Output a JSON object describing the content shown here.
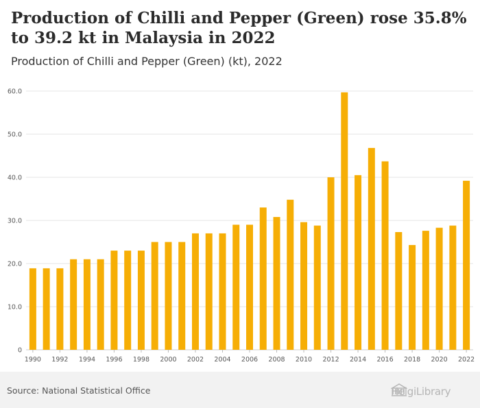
{
  "header": {
    "title": "Production of Chilli and Pepper (Green) rose 35.8% to 39.2 kt in Malaysia in 2022",
    "subtitle": "Production of Chilli and Pepper (Green) (kt), 2022"
  },
  "footer": {
    "source": "Source: National Statistical Office",
    "logo_text": "HelgiLibrary"
  },
  "colors": {
    "bar": "#f6ae05",
    "grid": "#e6e6e6",
    "background": "#ffffff"
  },
  "chart_data": {
    "type": "bar",
    "title": "Production of Chilli and Pepper (Green) (kt), 2022",
    "xlabel": "",
    "ylabel": "",
    "ylim": [
      0,
      60
    ],
    "yticks": [
      0,
      10,
      20,
      30,
      40,
      50,
      60
    ],
    "ytick_labels": [
      "0",
      "10.0",
      "20.0",
      "30.0",
      "40.0",
      "50.0",
      "60.0"
    ],
    "grid": true,
    "categories": [
      "1990",
      "1991",
      "1992",
      "1993",
      "1994",
      "1995",
      "1996",
      "1997",
      "1998",
      "1999",
      "2000",
      "2001",
      "2002",
      "2003",
      "2004",
      "2005",
      "2006",
      "2007",
      "2008",
      "2009",
      "2010",
      "2011",
      "2012",
      "2013",
      "2014",
      "2015",
      "2016",
      "2017",
      "2018",
      "2019",
      "2020",
      "2021",
      "2022"
    ],
    "xtick_labels": [
      "1990",
      "1992",
      "1994",
      "1996",
      "1998",
      "2000",
      "2002",
      "2004",
      "2006",
      "2008",
      "2010",
      "2012",
      "2014",
      "2016",
      "2018",
      "2020",
      "2022"
    ],
    "values": [
      18.9,
      18.9,
      18.9,
      21.0,
      21.0,
      21.0,
      23.0,
      23.0,
      23.0,
      25.0,
      25.0,
      25.0,
      27.0,
      27.0,
      27.0,
      29.0,
      29.0,
      33.0,
      30.8,
      34.8,
      29.6,
      28.8,
      40.0,
      59.7,
      40.5,
      46.8,
      43.7,
      27.3,
      24.3,
      27.6,
      28.3,
      28.8,
      39.2
    ]
  }
}
